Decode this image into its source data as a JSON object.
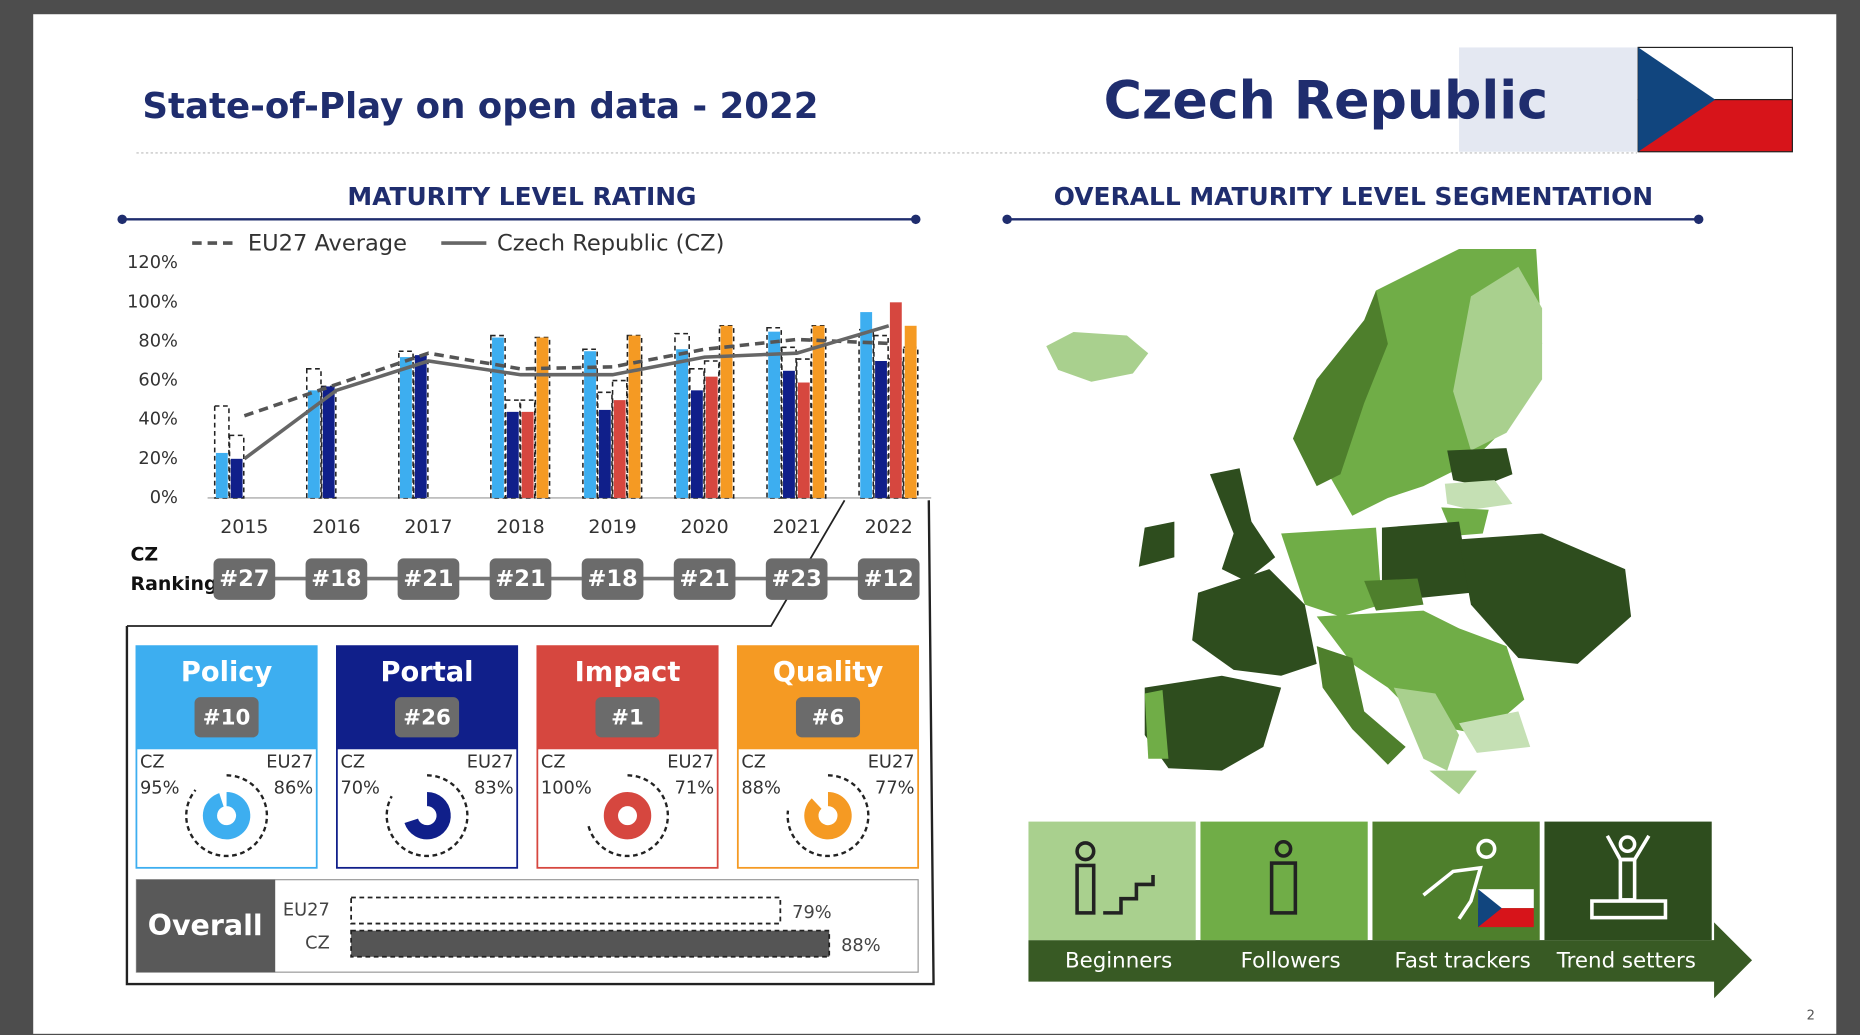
{
  "header": {
    "title": "State-of-Play on open data - 2022",
    "country": "Czech Republic"
  },
  "chart_data": {
    "type": "bar",
    "title": "MATURITY LEVEL RATING",
    "categories": [
      "2015",
      "2016",
      "2017",
      "2018",
      "2019",
      "2020",
      "2021",
      "2022"
    ],
    "ylim": [
      0,
      120
    ],
    "yticks": [
      {
        "value": 0,
        "label": "0%"
      },
      {
        "value": 20,
        "label": "20%"
      },
      {
        "value": 40,
        "label": "40%"
      },
      {
        "value": 60,
        "label": "60%"
      },
      {
        "value": 80,
        "label": "80%"
      },
      {
        "value": 100,
        "label": "100%"
      },
      {
        "value": 120,
        "label": "120%"
      }
    ],
    "series": [
      {
        "name": "Policy",
        "color": "#3daef0",
        "values": [
          23,
          55,
          72,
          82,
          75,
          76,
          85,
          95
        ],
        "eu27_values": [
          47,
          66,
          75,
          83,
          76,
          84,
          87,
          86
        ]
      },
      {
        "name": "Portal",
        "color": "#101f8a",
        "values": [
          20,
          57,
          73,
          44,
          45,
          55,
          65,
          70
        ],
        "eu27_values": [
          32,
          57,
          72,
          50,
          54,
          66,
          77,
          83
        ]
      },
      {
        "name": "Impact",
        "color": "#d6473f",
        "values": [
          null,
          null,
          null,
          44,
          50,
          62,
          59,
          100
        ],
        "eu27_values": [
          null,
          null,
          null,
          50,
          60,
          70,
          71,
          71
        ]
      },
      {
        "name": "Quality",
        "color": "#f59a23",
        "values": [
          null,
          null,
          null,
          82,
          83,
          88,
          88,
          88
        ],
        "eu27_values": [
          null,
          null,
          null,
          82,
          83,
          88,
          88,
          77
        ]
      },
      {
        "name": "EU27 Average",
        "type": "line",
        "color": "#555555",
        "dashed": true,
        "values": [
          42,
          58,
          74,
          66,
          67,
          76,
          81,
          79
        ]
      },
      {
        "name": "Czech Republic (CZ)",
        "type": "line",
        "color": "#666666",
        "dashed": false,
        "values": [
          20,
          55,
          70,
          63,
          63,
          72,
          74,
          88
        ]
      }
    ]
  },
  "ranking": {
    "label_lines": [
      "CZ",
      "Ranking"
    ],
    "values": [
      "#27",
      "#18",
      "#21",
      "#21",
      "#18",
      "#21",
      "#23",
      "#12"
    ]
  },
  "dimensions": {
    "cz_label": "CZ",
    "eu_label": "EU27",
    "items": [
      {
        "rank": "#10",
        "cz": 95,
        "cz_text": "95%",
        "eu": 86,
        "eu_text": "86%"
      },
      {
        "rank": "#26",
        "cz": 70,
        "cz_text": "70%",
        "eu": 83,
        "eu_text": "83%"
      },
      {
        "rank": "#1",
        "cz": 100,
        "cz_text": "100%",
        "eu": 71,
        "eu_text": "71%"
      },
      {
        "rank": "#6",
        "cz": 88,
        "cz_text": "88%",
        "eu": 77,
        "eu_text": "77%"
      }
    ]
  },
  "overall": {
    "label": "Overall",
    "rows": [
      {
        "name": "EU27",
        "value": 79,
        "value_label": "79%"
      },
      {
        "name": "CZ",
        "value": 88,
        "value_label": "88%"
      }
    ]
  },
  "segmentation": {
    "title": "OVERALL MATURITY LEVEL SEGMENTATION",
    "levels": [
      "Beginners",
      "Followers",
      "Fast trackers",
      "Trend setters"
    ]
  },
  "page_number": "2"
}
